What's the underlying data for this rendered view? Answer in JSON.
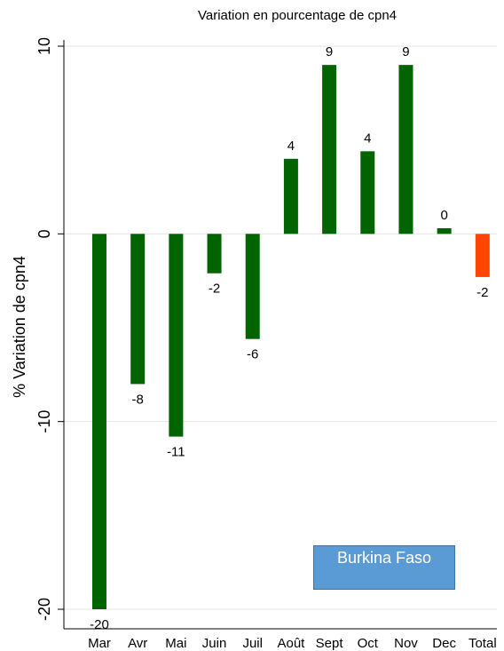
{
  "chart_data": {
    "type": "bar",
    "title": "Variation en pourcentage  de cpn4",
    "ylabel": "% Variation de  cpn4",
    "xlabel": "",
    "ylim": [
      -20,
      10
    ],
    "yticks": [
      10,
      0,
      -10,
      -20
    ],
    "grid": true,
    "categories": [
      "Mar",
      "Avr",
      "Mai",
      "Juin",
      "Juil",
      "Août",
      "Sept",
      "Oct",
      "Nov",
      "Dec",
      "Total"
    ],
    "values": [
      -20,
      -8,
      -10.8,
      -2.1,
      -5.6,
      4,
      9,
      4.4,
      9,
      0.3,
      -2.3
    ],
    "labels": [
      "-20",
      "-8",
      "-11",
      "-2",
      "-6",
      "4",
      "9",
      "4",
      "9",
      "0",
      "-2"
    ],
    "colors": [
      "#006400",
      "#006400",
      "#006400",
      "#006400",
      "#006400",
      "#006400",
      "#006400",
      "#006400",
      "#006400",
      "#006400",
      "#ff4500"
    ],
    "annotation": "Burkina Faso",
    "annotation_color": "#5b9bd5"
  }
}
